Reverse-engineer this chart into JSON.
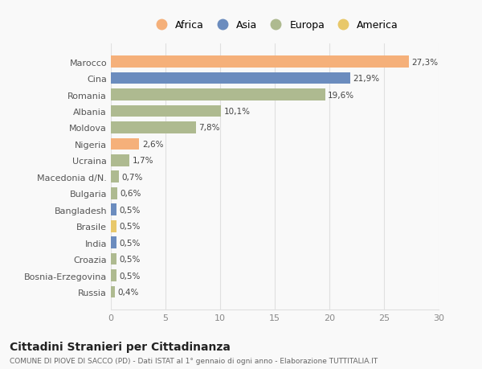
{
  "countries": [
    "Marocco",
    "Cina",
    "Romania",
    "Albania",
    "Moldova",
    "Nigeria",
    "Ucraina",
    "Macedonia d/N.",
    "Bulgaria",
    "Bangladesh",
    "Brasile",
    "India",
    "Croazia",
    "Bosnia-Erzegovina",
    "Russia"
  ],
  "values": [
    27.3,
    21.9,
    19.6,
    10.1,
    7.8,
    2.6,
    1.7,
    0.7,
    0.6,
    0.5,
    0.5,
    0.5,
    0.5,
    0.5,
    0.4
  ],
  "labels": [
    "27,3%",
    "21,9%",
    "19,6%",
    "10,1%",
    "7,8%",
    "2,6%",
    "1,7%",
    "0,7%",
    "0,6%",
    "0,5%",
    "0,5%",
    "0,5%",
    "0,5%",
    "0,5%",
    "0,4%"
  ],
  "continents": [
    "Africa",
    "Asia",
    "Europa",
    "Europa",
    "Europa",
    "Africa",
    "Europa",
    "Europa",
    "Europa",
    "Asia",
    "America",
    "Asia",
    "Europa",
    "Europa",
    "Europa"
  ],
  "colors": {
    "Africa": "#F5B07A",
    "Asia": "#6B8CBE",
    "Europa": "#AEBA90",
    "America": "#E8C86A"
  },
  "legend_order": [
    "Africa",
    "Asia",
    "Europa",
    "America"
  ],
  "title": "Cittadini Stranieri per Cittadinanza",
  "subtitle": "COMUNE DI PIOVE DI SACCO (PD) - Dati ISTAT al 1° gennaio di ogni anno - Elaborazione TUTTITALIA.IT",
  "xlim": [
    0,
    30
  ],
  "xticks": [
    0,
    5,
    10,
    15,
    20,
    25,
    30
  ],
  "background_color": "#f9f9f9",
  "bar_height": 0.72,
  "grid_color": "#e0e0e0"
}
